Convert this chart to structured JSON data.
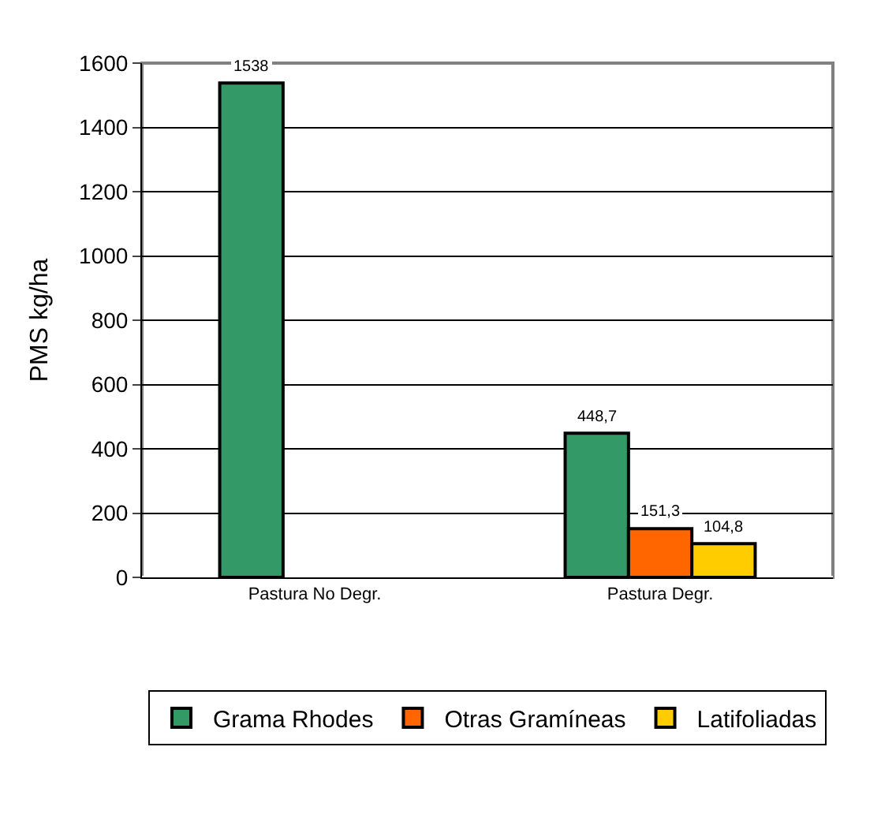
{
  "chart_data": {
    "type": "bar",
    "ylabel": "PMS kg/ha",
    "categories": [
      "Pastura No Degr.",
      "Pastura Degr."
    ],
    "series": [
      {
        "name": "Grama Rhodes",
        "color": "#339966",
        "values": [
          1538,
          448.7
        ],
        "value_labels": [
          "1538",
          "448,7"
        ]
      },
      {
        "name": "Otras Gramíneas",
        "color": "#ff6600",
        "values": [
          null,
          151.3
        ],
        "value_labels": [
          null,
          "151,3"
        ]
      },
      {
        "name": "Latifoliadas",
        "color": "#ffcc00",
        "values": [
          null,
          104.8
        ],
        "value_labels": [
          null,
          "104,8"
        ]
      }
    ],
    "ylim": [
      0,
      1600
    ],
    "yticks": [
      0,
      200,
      400,
      600,
      800,
      1000,
      1200,
      1400,
      1600
    ],
    "grid": "y",
    "legend": "bottom"
  }
}
